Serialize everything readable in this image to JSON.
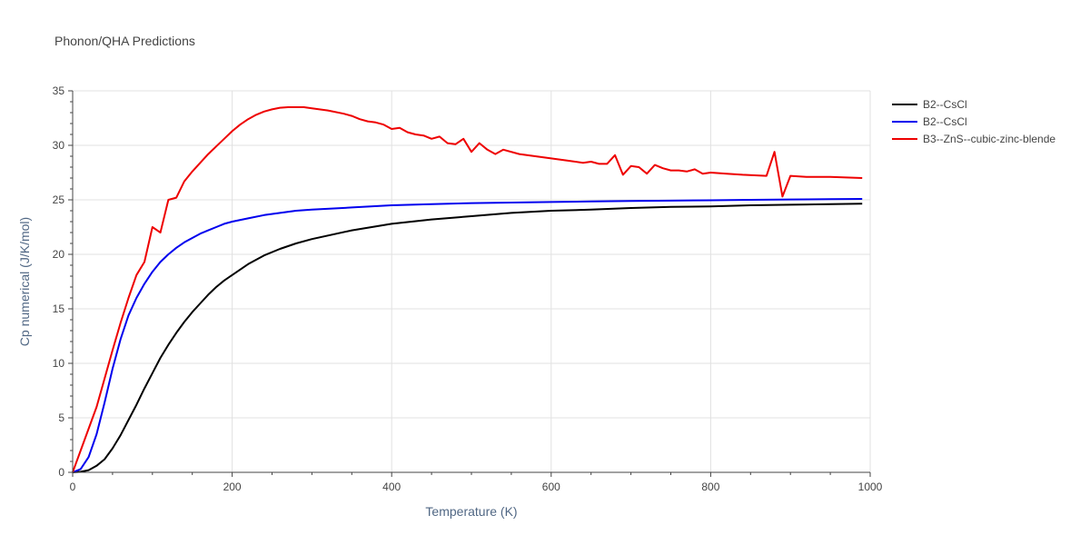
{
  "chart_data": {
    "type": "line",
    "title": "Phonon/QHA Predictions",
    "xlabel": "Temperature (K)",
    "ylabel": "Cp numerical (J/K/mol)",
    "xlim": [
      0,
      1000
    ],
    "ylim": [
      0,
      35
    ],
    "xticks": [
      0,
      200,
      400,
      600,
      800,
      1000
    ],
    "yticks": [
      0,
      5,
      10,
      15,
      20,
      25,
      30,
      35
    ],
    "grid": true,
    "legend_position": "top-right",
    "series": [
      {
        "name": "B2--CsCl",
        "color": "#000000",
        "x": [
          0,
          10,
          20,
          30,
          40,
          50,
          60,
          70,
          80,
          90,
          100,
          110,
          120,
          130,
          140,
          150,
          160,
          170,
          180,
          190,
          200,
          220,
          240,
          260,
          280,
          300,
          350,
          400,
          450,
          500,
          550,
          600,
          650,
          700,
          750,
          800,
          850,
          900,
          950,
          990
        ],
        "values": [
          0,
          0.05,
          0.2,
          0.6,
          1.2,
          2.2,
          3.4,
          4.8,
          6.2,
          7.7,
          9.1,
          10.5,
          11.7,
          12.8,
          13.8,
          14.7,
          15.5,
          16.3,
          17.0,
          17.6,
          18.1,
          19.1,
          19.9,
          20.5,
          21.0,
          21.4,
          22.2,
          22.8,
          23.2,
          23.5,
          23.8,
          24.0,
          24.1,
          24.25,
          24.35,
          24.4,
          24.5,
          24.55,
          24.6,
          24.65
        ]
      },
      {
        "name": "B2--CsCl",
        "color": "#0000ee",
        "x": [
          0,
          10,
          20,
          30,
          40,
          50,
          60,
          70,
          80,
          90,
          100,
          110,
          120,
          130,
          140,
          150,
          160,
          170,
          180,
          190,
          200,
          220,
          240,
          260,
          280,
          300,
          350,
          400,
          450,
          500,
          550,
          600,
          650,
          700,
          750,
          800,
          850,
          900,
          950,
          990
        ],
        "values": [
          0,
          0.3,
          1.4,
          3.5,
          6.4,
          9.5,
          12.2,
          14.4,
          16.0,
          17.3,
          18.4,
          19.3,
          20.0,
          20.6,
          21.1,
          21.5,
          21.9,
          22.2,
          22.5,
          22.8,
          23.0,
          23.3,
          23.6,
          23.8,
          24.0,
          24.1,
          24.3,
          24.5,
          24.6,
          24.7,
          24.75,
          24.8,
          24.85,
          24.9,
          24.93,
          24.96,
          25.0,
          25.03,
          25.06,
          25.08
        ]
      },
      {
        "name": "B3--ZnS--cubic-zinc-blende",
        "color": "#ee0000",
        "x": [
          0,
          10,
          20,
          30,
          40,
          50,
          60,
          70,
          80,
          90,
          100,
          110,
          120,
          130,
          140,
          150,
          160,
          170,
          180,
          190,
          200,
          210,
          220,
          230,
          240,
          250,
          260,
          270,
          280,
          290,
          300,
          320,
          340,
          350,
          360,
          370,
          380,
          390,
          400,
          410,
          420,
          430,
          440,
          450,
          460,
          470,
          480,
          490,
          500,
          510,
          520,
          530,
          540,
          560,
          580,
          600,
          620,
          640,
          650,
          660,
          670,
          680,
          690,
          700,
          710,
          720,
          730,
          740,
          750,
          760,
          770,
          780,
          790,
          800,
          820,
          840,
          870,
          880,
          890,
          900,
          920,
          950,
          990
        ],
        "values": [
          0,
          2.0,
          4.0,
          6.0,
          8.6,
          11.2,
          13.7,
          16.0,
          18.1,
          19.3,
          22.5,
          22.0,
          25.0,
          25.2,
          26.7,
          27.6,
          28.4,
          29.2,
          29.9,
          30.6,
          31.3,
          31.9,
          32.4,
          32.8,
          33.1,
          33.3,
          33.45,
          33.5,
          33.5,
          33.5,
          33.4,
          33.2,
          32.9,
          32.7,
          32.4,
          32.2,
          32.1,
          31.9,
          31.5,
          31.6,
          31.2,
          31.0,
          30.9,
          30.6,
          30.8,
          30.2,
          30.1,
          30.6,
          29.4,
          30.2,
          29.6,
          29.2,
          29.6,
          29.2,
          29.0,
          28.8,
          28.6,
          28.4,
          28.5,
          28.3,
          28.3,
          29.1,
          27.3,
          28.1,
          28.0,
          27.4,
          28.2,
          27.9,
          27.7,
          27.7,
          27.6,
          27.8,
          27.4,
          27.5,
          27.4,
          27.3,
          27.2,
          29.4,
          25.3,
          27.2,
          27.1,
          27.1,
          27.0
        ]
      }
    ]
  }
}
